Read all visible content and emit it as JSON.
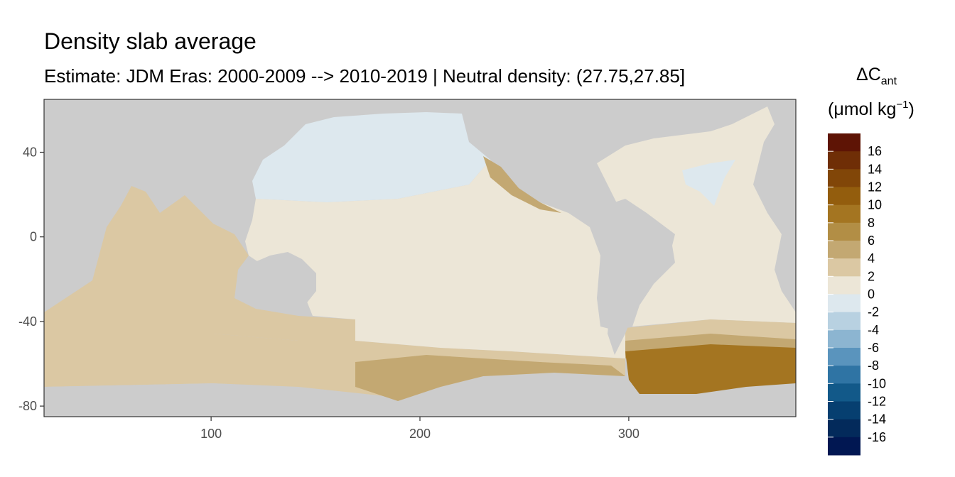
{
  "title": "Density slab average",
  "subtitle": "Estimate: JDM Eras: 2000-2009 --> 2010-2019 | Neutral density: (27.75,27.85]",
  "legend": {
    "title_main": "ΔC",
    "title_sub": "ant",
    "unit_prefix": "(μmol kg",
    "unit_sup": "−1",
    "unit_suffix": ")"
  },
  "chart_data": {
    "type": "map",
    "title": "Density slab average",
    "subtitle": "Estimate: JDM Eras: 2000-2009 --> 2010-2019 | Neutral density: (27.75,27.85]",
    "xlim": [
      20,
      380
    ],
    "ylim": [
      -85,
      65
    ],
    "x_ticks": [
      100,
      200,
      300
    ],
    "y_ticks": [
      40,
      0,
      -40,
      -80
    ],
    "land_color": "#cccccc",
    "colorbar": {
      "labels": [
        "16",
        "14",
        "12",
        "10",
        "8",
        "6",
        "4",
        "2",
        "0",
        "-2",
        "-4",
        "-6",
        "-8",
        "-10",
        "-12",
        "-14",
        "-16"
      ],
      "colors": [
        "#5e1405",
        "#6f2e06",
        "#814608",
        "#935d0d",
        "#a47521",
        "#b28e45",
        "#c3a872",
        "#dbc8a3",
        "#ece6d7",
        "#dde8ee",
        "#b8d1e1",
        "#8cb5d1",
        "#5a94bd",
        "#2f74a4",
        "#125989",
        "#063f70",
        "#032a5b",
        "#011752"
      ]
    },
    "regions": [
      {
        "name": "north-pacific",
        "value": -1,
        "color": "#dde8ee"
      },
      {
        "name": "north-atlantic-west",
        "value": -1,
        "color": "#dde8ee"
      },
      {
        "name": "pacific-tropical",
        "value": 1,
        "color": "#ece6d7"
      },
      {
        "name": "atlantic",
        "value": 1,
        "color": "#ece6d7"
      },
      {
        "name": "indian-ocean",
        "value": 3,
        "color": "#dbc8a3"
      },
      {
        "name": "southern-ocean-band",
        "value": 3,
        "color": "#dbc8a3"
      },
      {
        "name": "california-current",
        "value": 5,
        "color": "#c3a872"
      },
      {
        "name": "ross-sea",
        "value": 5,
        "color": "#c3a872"
      },
      {
        "name": "weddell-sea",
        "value": 9,
        "color": "#a47521"
      }
    ]
  }
}
